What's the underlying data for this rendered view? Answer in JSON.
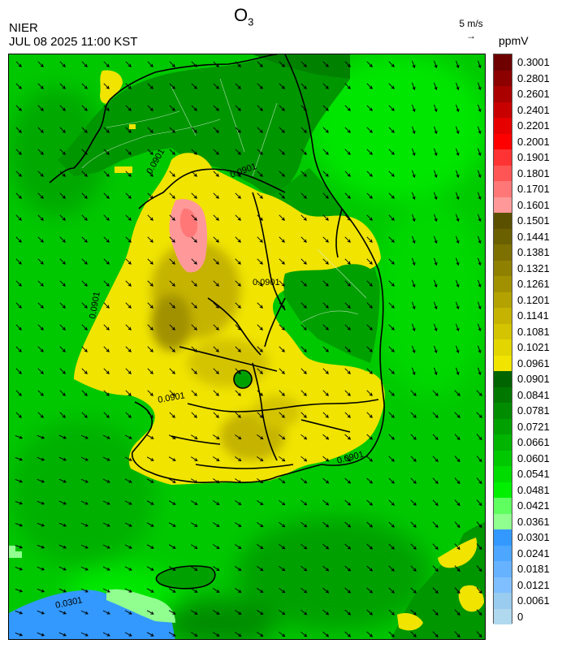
{
  "header": {
    "pollutant": "O",
    "pollutant_sub": "3",
    "agency": "NIER",
    "datetime": "JUL 08 2025 11:00 KST"
  },
  "wind_reference": {
    "label": "5 m/s",
    "arrow": "→"
  },
  "legend": {
    "unit": "ppmV",
    "bins": [
      {
        "label": "0.3001",
        "color": "#6e0000"
      },
      {
        "label": "0.2801",
        "color": "#8c0000"
      },
      {
        "label": "0.2601",
        "color": "#aa0000"
      },
      {
        "label": "0.2401",
        "color": "#c80000"
      },
      {
        "label": "0.2201",
        "color": "#e60000"
      },
      {
        "label": "0.2001",
        "color": "#ff0000"
      },
      {
        "label": "0.1901",
        "color": "#ff3333"
      },
      {
        "label": "0.1801",
        "color": "#ff5555"
      },
      {
        "label": "0.1701",
        "color": "#ff7777"
      },
      {
        "label": "0.1601",
        "color": "#ff9999"
      },
      {
        "label": "0.1501",
        "color": "#5a5000"
      },
      {
        "label": "0.1441",
        "color": "#6b6000"
      },
      {
        "label": "0.1381",
        "color": "#7d7000"
      },
      {
        "label": "0.1321",
        "color": "#8f8000"
      },
      {
        "label": "0.1261",
        "color": "#a19100"
      },
      {
        "label": "0.1201",
        "color": "#b3a200"
      },
      {
        "label": "0.1141",
        "color": "#c5b300"
      },
      {
        "label": "0.1081",
        "color": "#d4c400"
      },
      {
        "label": "0.1021",
        "color": "#e3d500"
      },
      {
        "label": "0.0961",
        "color": "#f0e400"
      },
      {
        "label": "0.0901",
        "color": "#006400"
      },
      {
        "label": "0.0841",
        "color": "#007800"
      },
      {
        "label": "0.0781",
        "color": "#008c00"
      },
      {
        "label": "0.0721",
        "color": "#00a000"
      },
      {
        "label": "0.0661",
        "color": "#00b400"
      },
      {
        "label": "0.0601",
        "color": "#00c800"
      },
      {
        "label": "0.0541",
        "color": "#00dc00"
      },
      {
        "label": "0.0481",
        "color": "#00f000"
      },
      {
        "label": "0.0421",
        "color": "#60ff60"
      },
      {
        "label": "0.0361",
        "color": "#90ff90"
      },
      {
        "label": "0.0301",
        "color": "#3399ff"
      },
      {
        "label": "0.0241",
        "color": "#4da6ff"
      },
      {
        "label": "0.0181",
        "color": "#66b2ff"
      },
      {
        "label": "0.0121",
        "color": "#80bfff"
      },
      {
        "label": "0.0061",
        "color": "#99ccee"
      },
      {
        "label": "0",
        "color": "#b0d8ee"
      }
    ]
  },
  "contour_labels": [
    "0.0901",
    "0.0901",
    "0.0901",
    "0.0901",
    "0.0901",
    "0.0901",
    "0.0301"
  ]
}
